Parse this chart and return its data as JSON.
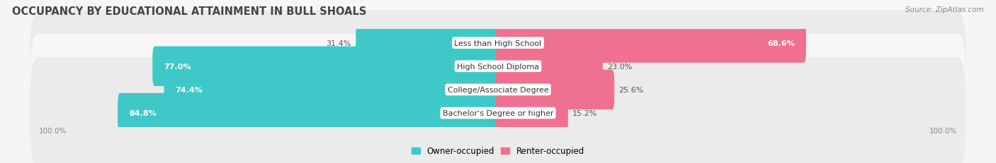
{
  "title": "OCCUPANCY BY EDUCATIONAL ATTAINMENT IN BULL SHOALS",
  "source": "Source: ZipAtlas.com",
  "categories": [
    "Less than High School",
    "High School Diploma",
    "College/Associate Degree",
    "Bachelor's Degree or higher"
  ],
  "owner_pct": [
    31.4,
    77.0,
    74.4,
    84.8
  ],
  "renter_pct": [
    68.6,
    23.0,
    25.6,
    15.2
  ],
  "owner_color": "#3ec8c8",
  "renter_color": "#f07090",
  "bg_color": "#f5f5f5",
  "row_bg_light": "#f7f7f7",
  "row_bg_dark": "#ebebeb",
  "label_fontsize": 8.0,
  "title_fontsize": 10.5,
  "legend_label_owner": "Owner-occupied",
  "legend_label_renter": "Renter-occupied",
  "left_axis_label": "100.0%",
  "right_axis_label": "100.0%"
}
